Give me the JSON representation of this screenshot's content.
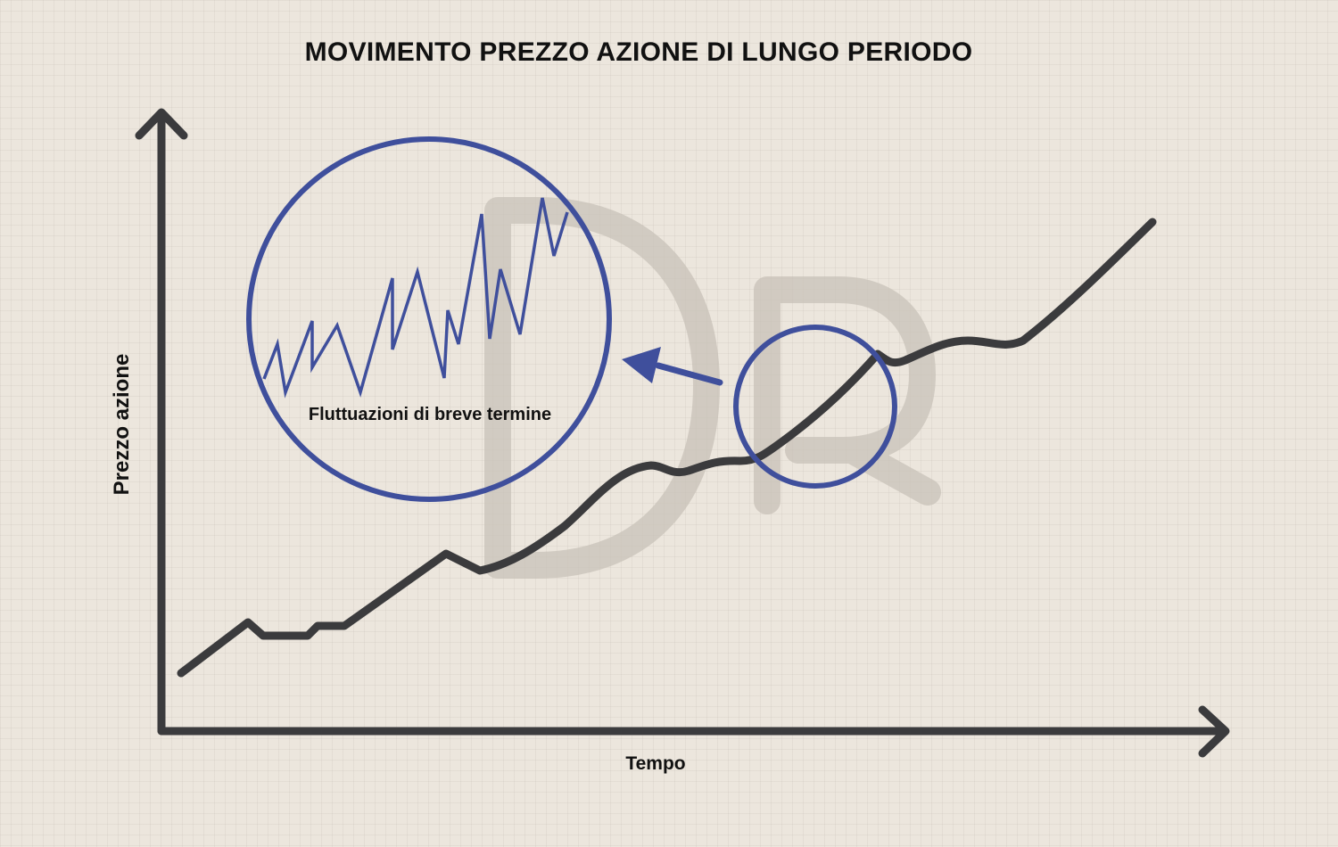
{
  "title": "MOVIMENTO PREZZO AZIONE DI LUNGO PERIODO",
  "x_axis_label": "Tempo",
  "y_axis_label": "Prezzo azione",
  "callout_label": "Fluttuazioni di breve termine",
  "watermark_text": "DR",
  "colors": {
    "line": "#3b3b3d",
    "highlight": "#3f4f9c",
    "axis": "#3b3b3d",
    "watermark": "#c8c1b8",
    "background": "#ece6dd"
  }
}
